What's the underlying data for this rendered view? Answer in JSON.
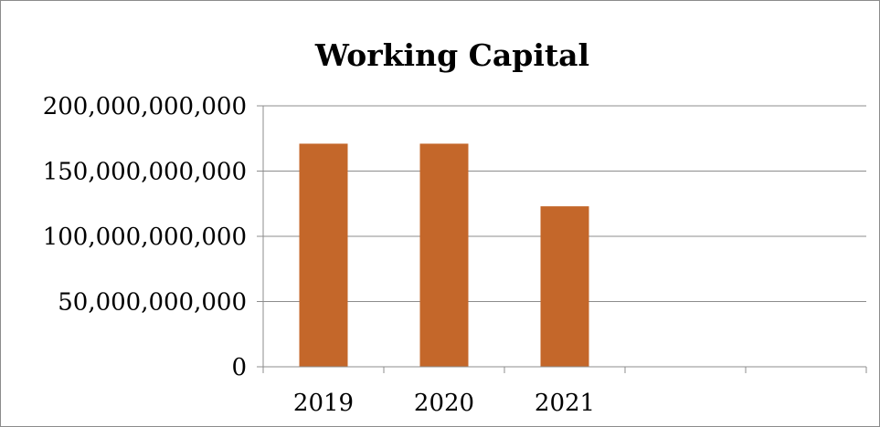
{
  "chart_data": {
    "type": "bar",
    "title": "Working Capital",
    "categories": [
      "2019",
      "2020",
      "2021",
      "",
      ""
    ],
    "values": [
      171000000000,
      171000000000,
      123000000000,
      null,
      null
    ],
    "y_tick_labels": [
      "0",
      "50,000,000,000",
      "100,000,000,000",
      "150,000,000,000",
      "200,000,000,000"
    ],
    "y_ticks": [
      0,
      50000000000,
      100000000000,
      150000000000,
      200000000000
    ],
    "ylim": [
      0,
      200000000000
    ],
    "grid": true,
    "legend": "none",
    "bar_color": "#C4672A",
    "gridline_color": "#8c8c8c"
  }
}
